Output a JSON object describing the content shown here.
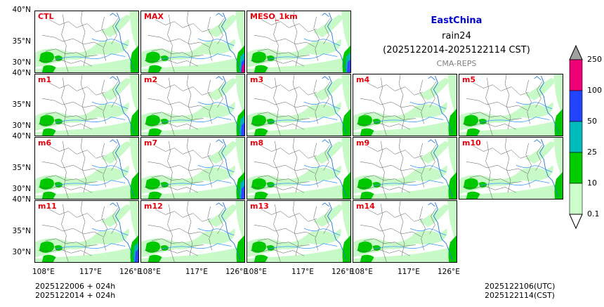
{
  "title": {
    "region": "EastChina",
    "variable": "rain24",
    "period": "(2025122014-2025122114 CST)",
    "source": "CMA-REPS",
    "region_color": "#0000cc",
    "source_color": "#808080"
  },
  "panels": [
    {
      "label": "CTL",
      "row": 0,
      "col": 0,
      "intensity": 1.0
    },
    {
      "label": "MAX",
      "row": 0,
      "col": 1,
      "intensity": 1.3
    },
    {
      "label": "MESO_1km",
      "row": 0,
      "col": 2,
      "intensity": 1.2
    },
    {
      "label": "m1",
      "row": 1,
      "col": 0,
      "intensity": 1.0
    },
    {
      "label": "m2",
      "row": 1,
      "col": 1,
      "intensity": 1.1
    },
    {
      "label": "m3",
      "row": 1,
      "col": 2,
      "intensity": 1.0
    },
    {
      "label": "m4",
      "row": 1,
      "col": 3,
      "intensity": 0.9
    },
    {
      "label": "m5",
      "row": 1,
      "col": 4,
      "intensity": 0.9
    },
    {
      "label": "m6",
      "row": 2,
      "col": 0,
      "intensity": 1.0
    },
    {
      "label": "m7",
      "row": 2,
      "col": 1,
      "intensity": 1.1
    },
    {
      "label": "m8",
      "row": 2,
      "col": 2,
      "intensity": 1.0
    },
    {
      "label": "m9",
      "row": 2,
      "col": 3,
      "intensity": 0.9
    },
    {
      "label": "m10",
      "row": 2,
      "col": 4,
      "intensity": 1.0
    },
    {
      "label": "m11",
      "row": 3,
      "col": 0,
      "intensity": 1.1
    },
    {
      "label": "m12",
      "row": 3,
      "col": 1,
      "intensity": 1.0
    },
    {
      "label": "m13",
      "row": 3,
      "col": 2,
      "intensity": 1.0
    },
    {
      "label": "m14",
      "row": 3,
      "col": 3,
      "intensity": 0.9
    }
  ],
  "lat_labels": [
    "40°N",
    "35°N",
    "30°N"
  ],
  "lon_labels": [
    "108°E",
    "117°E",
    "126°E"
  ],
  "colorbar": {
    "levels": [
      "0.1",
      "10",
      "25",
      "50",
      "100",
      "250"
    ],
    "colors": [
      "#ccffcc",
      "#00cc00",
      "#00bbbb",
      "#2244ff",
      "#ee0077"
    ],
    "under_color": "#ffffff",
    "over_color": "#a0a0a0"
  },
  "rain_colors": {
    "light": "#c8fac8",
    "moderate": "#00c800",
    "heavy": "#00b4b4",
    "very_heavy": "#3246ff",
    "extreme": "#e6007a"
  },
  "map_colors": {
    "boundary": "#555555",
    "river": "#3399ff",
    "coast": "#1f77d4"
  },
  "footer": {
    "init_utc": "2025122006  +  024h",
    "init_cst": "2025122014  +  024h",
    "valid_utc": "2025122106(UTC)",
    "valid_cst": "2025122114(CST)"
  }
}
